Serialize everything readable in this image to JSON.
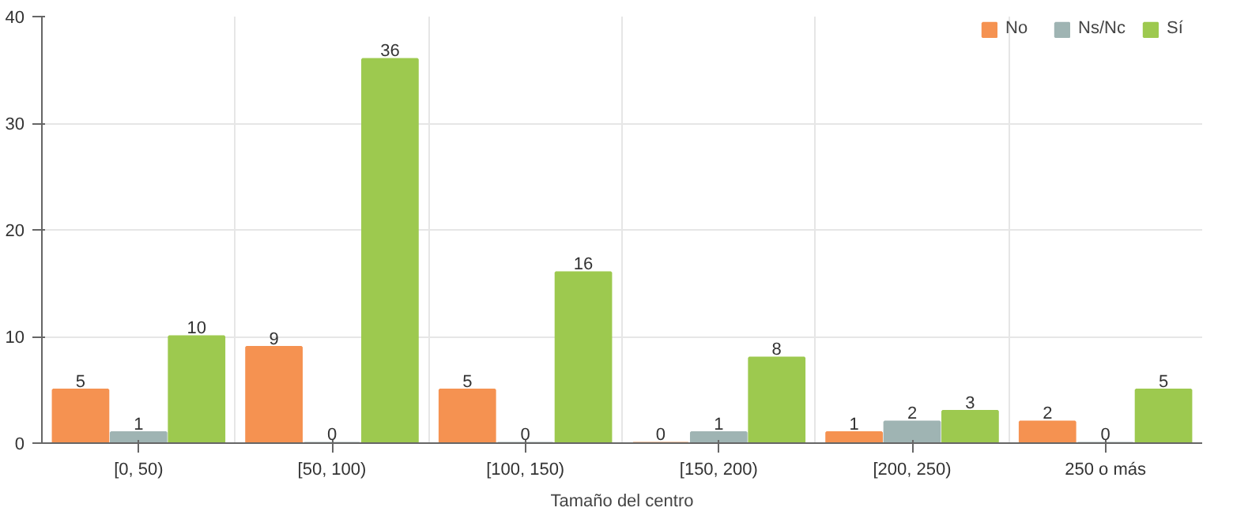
{
  "chart_data": {
    "type": "bar",
    "xlabel": "Tamaño del centro",
    "categories": [
      "[0, 50)",
      "[50, 100)",
      "[100, 150)",
      "[150, 200)",
      "[200, 250)",
      "250 o más"
    ],
    "series": [
      {
        "name": "No",
        "color": "#f59251",
        "values": [
          5,
          9,
          5,
          0,
          1,
          2
        ]
      },
      {
        "name": "Ns/Nc",
        "color": "#9fb4b3",
        "values": [
          1,
          0,
          0,
          1,
          2,
          0
        ]
      },
      {
        "name": "Sí",
        "color": "#9dc94f",
        "values": [
          10,
          36,
          16,
          8,
          3,
          5
        ]
      }
    ],
    "ylim": [
      0,
      40
    ],
    "yticks": [
      0,
      10,
      20,
      30,
      40
    ],
    "grid": true,
    "legend": "top right",
    "data_labels": true
  }
}
